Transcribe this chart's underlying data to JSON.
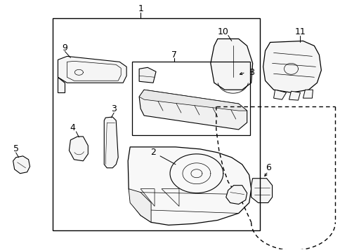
{
  "background_color": "#ffffff",
  "line_color": "#000000",
  "fig_width": 4.85,
  "fig_height": 3.57,
  "dpi": 100
}
